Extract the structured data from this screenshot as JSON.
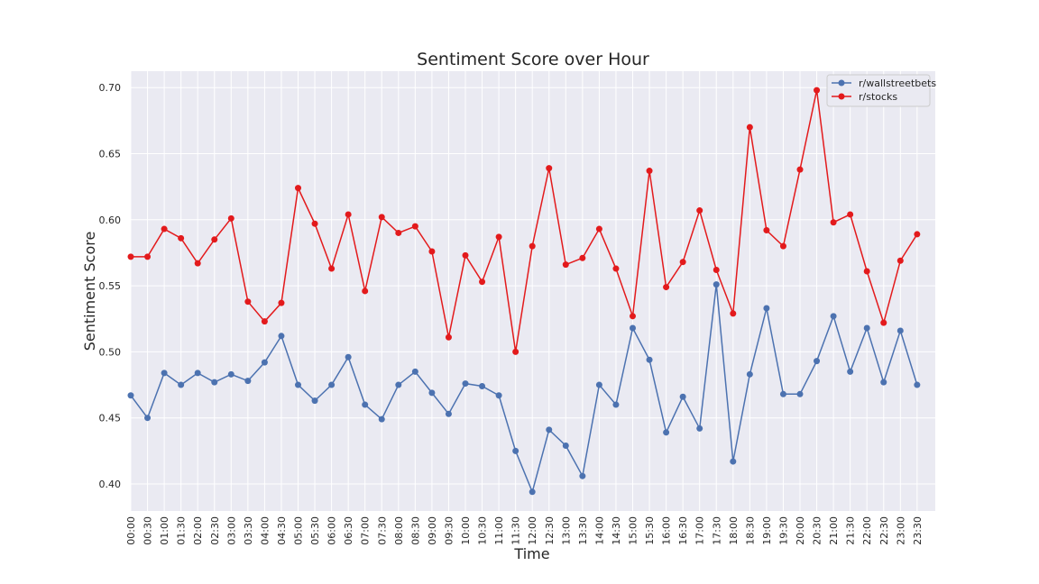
{
  "chart_data": {
    "type": "line",
    "title": "Sentiment Score over Hour",
    "xlabel": "Time",
    "ylabel": "Sentiment Score",
    "ylim": [
      0.38,
      0.715
    ],
    "y_ticks": [
      "0.40",
      "0.45",
      "0.50",
      "0.55",
      "0.60",
      "0.65",
      "0.70"
    ],
    "grid": true,
    "legend_position": "top-right",
    "categories": [
      "00:00",
      "00:30",
      "01:00",
      "01:30",
      "02:00",
      "02:30",
      "03:00",
      "03:30",
      "04:00",
      "04:30",
      "05:00",
      "05:30",
      "06:00",
      "06:30",
      "07:00",
      "07:30",
      "08:00",
      "08:30",
      "09:00",
      "09:30",
      "10:00",
      "10:30",
      "11:00",
      "11:30",
      "12:00",
      "12:30",
      "13:00",
      "13:30",
      "14:00",
      "14:30",
      "15:00",
      "15:30",
      "16:00",
      "16:30",
      "17:00",
      "17:30",
      "18:00",
      "18:30",
      "19:00",
      "19:30",
      "20:00",
      "20:30",
      "21:00",
      "21:30",
      "22:00",
      "22:30",
      "23:00",
      "23:30"
    ],
    "series": [
      {
        "name": "r/wallstreetbets",
        "color": "#4c72b0",
        "values": [
          0.467,
          0.45,
          0.484,
          0.475,
          0.484,
          0.477,
          0.483,
          0.478,
          0.492,
          0.512,
          0.475,
          0.463,
          0.475,
          0.496,
          0.46,
          0.449,
          0.475,
          0.485,
          0.469,
          0.453,
          0.476,
          0.474,
          0.467,
          0.425,
          0.394,
          0.441,
          0.429,
          0.406,
          0.475,
          0.46,
          0.518,
          0.494,
          0.439,
          0.466,
          0.442,
          0.551,
          0.417,
          0.483,
          0.533,
          0.468,
          0.468,
          0.493,
          0.527,
          0.485,
          0.518,
          0.477,
          0.516,
          0.475
        ]
      },
      {
        "name": "r/stocks",
        "color": "#e31a1c",
        "values": [
          0.572,
          0.572,
          0.593,
          0.586,
          0.567,
          0.585,
          0.601,
          0.538,
          0.523,
          0.537,
          0.624,
          0.597,
          0.563,
          0.604,
          0.546,
          0.602,
          0.59,
          0.595,
          0.576,
          0.511,
          0.573,
          0.553,
          0.587,
          0.5,
          0.58,
          0.639,
          0.566,
          0.571,
          0.593,
          0.563,
          0.527,
          0.637,
          0.549,
          0.568,
          0.607,
          0.562,
          0.529,
          0.67,
          0.592,
          0.58,
          0.638,
          0.698,
          0.598,
          0.604,
          0.561,
          0.522,
          0.569,
          0.589
        ]
      }
    ]
  }
}
